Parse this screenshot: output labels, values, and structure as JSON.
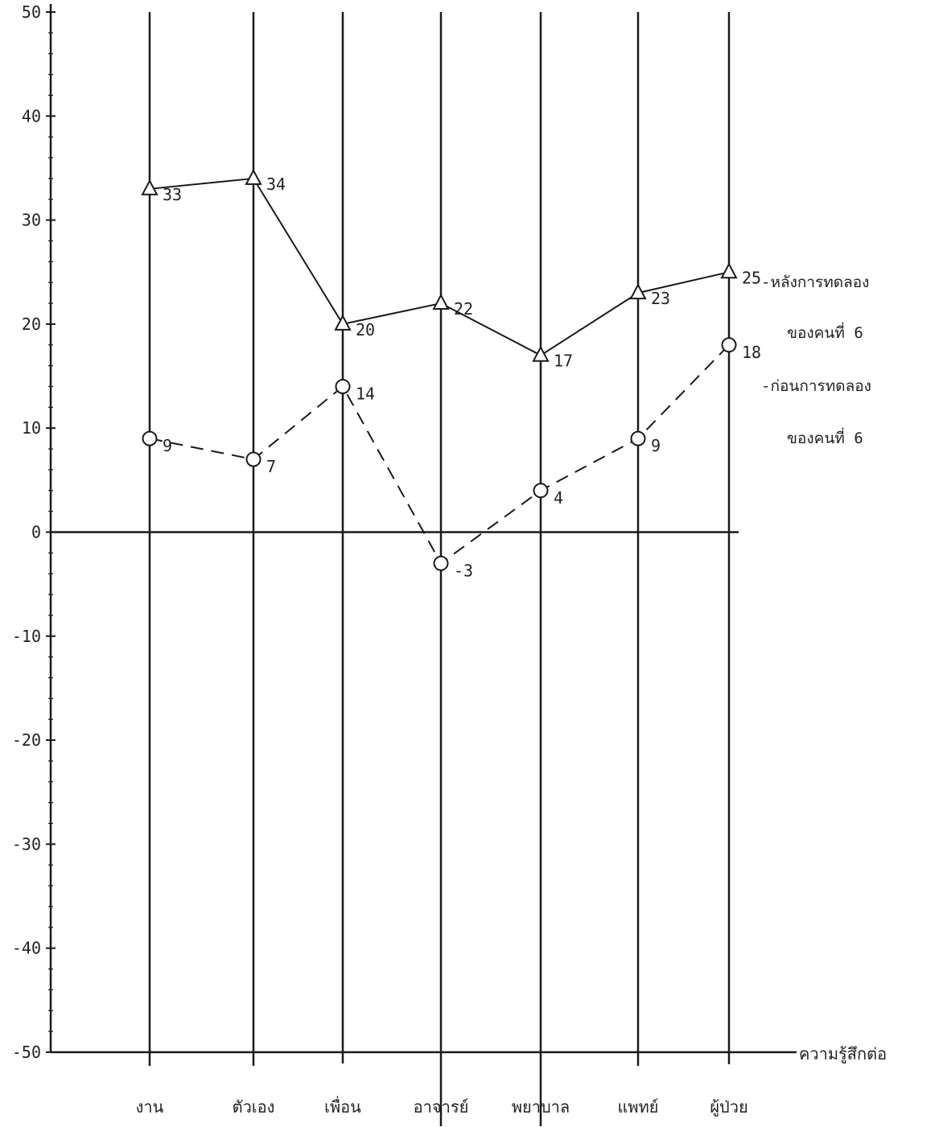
{
  "chart_data": {
    "type": "line",
    "categories": [
      "งาน",
      "ตัวเอง",
      "เพื่อน",
      "อาจารย์",
      "พยาบาล",
      "แพทย์",
      "ผู้ป่วย"
    ],
    "series": [
      {
        "name": "-หลังการทดลอง ของคนที่ 6",
        "legend_lines": [
          "-หลังการทดลอง",
          "ของคนที่ 6"
        ],
        "marker": "triangle",
        "line_style": "solid",
        "values": [
          33,
          34,
          20,
          22,
          17,
          23,
          25
        ],
        "labels": [
          "33",
          "34",
          "20",
          "22",
          "17",
          "23",
          "25"
        ]
      },
      {
        "name": "-ก่อนการทดลอง ของคนที่ 6",
        "legend_lines": [
          "-ก่อนการทดลอง",
          "ของคนที่ 6"
        ],
        "marker": "circle",
        "line_style": "dashed",
        "values": [
          9,
          7,
          14,
          -3,
          4,
          9,
          18
        ],
        "labels": [
          "9",
          "7",
          "14",
          "-3",
          "4",
          "9",
          "18"
        ]
      }
    ],
    "xlabel": "ความรู้สึกต่อ",
    "ylabel": "",
    "ylim": [
      -50,
      50
    ],
    "yticks": [
      50,
      40,
      30,
      20,
      10,
      0,
      -10,
      -20,
      -30,
      -40,
      -50
    ],
    "ytick_labels": [
      "50",
      "40",
      "30",
      "20",
      "10",
      "0",
      "-10",
      "-20",
      "-30",
      "-40",
      "-50"
    ],
    "grid": false,
    "legend_position": "right"
  }
}
